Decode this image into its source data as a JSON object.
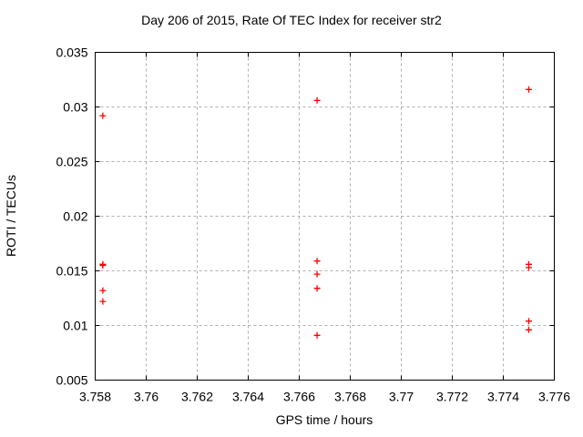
{
  "window": {
    "background": "#ffffff"
  },
  "chart_data": {
    "type": "scatter",
    "title": "Day 206 of 2015, Rate Of TEC Index for receiver str2",
    "xlabel": "GPS time / hours",
    "ylabel": "ROTI / TECUs",
    "xlim": [
      3.758,
      3.776
    ],
    "ylim": [
      0.005,
      0.035
    ],
    "grid": "dashed",
    "legend": "none",
    "xticks": {
      "values": [
        3.758,
        3.76,
        3.762,
        3.764,
        3.766,
        3.768,
        3.77,
        3.772,
        3.774,
        3.776
      ],
      "labels": [
        "3.758",
        "3.76",
        "3.762",
        "3.764",
        "3.766",
        "3.768",
        "3.77",
        "3.772",
        "3.774",
        "3.776"
      ]
    },
    "yticks": {
      "values": [
        0.005,
        0.01,
        0.015,
        0.02,
        0.025,
        0.03,
        0.035
      ],
      "labels": [
        "0.005",
        "0.01",
        "0.015",
        "0.02",
        "0.025",
        "0.03",
        "0.035"
      ]
    },
    "series": [
      {
        "name": "ROTI",
        "marker": "plus",
        "color": "#ff0000",
        "points": [
          [
            3.7583,
            0.0292
          ],
          [
            3.7583,
            0.0156
          ],
          [
            3.7583,
            0.0155
          ],
          [
            3.7583,
            0.0132
          ],
          [
            3.7583,
            0.0122
          ],
          [
            3.7667,
            0.0306
          ],
          [
            3.7667,
            0.0159
          ],
          [
            3.7667,
            0.0147
          ],
          [
            3.7667,
            0.0134
          ],
          [
            3.7667,
            0.0091
          ],
          [
            3.775,
            0.0316
          ],
          [
            3.775,
            0.0156
          ],
          [
            3.775,
            0.0153
          ],
          [
            3.775,
            0.0104
          ],
          [
            3.775,
            0.0096
          ]
        ]
      }
    ]
  },
  "colors": {
    "marker": "#ff0000",
    "grid": "#b0b0b0",
    "frame": "#000000",
    "background": "#ffffff",
    "text": "#000000"
  }
}
